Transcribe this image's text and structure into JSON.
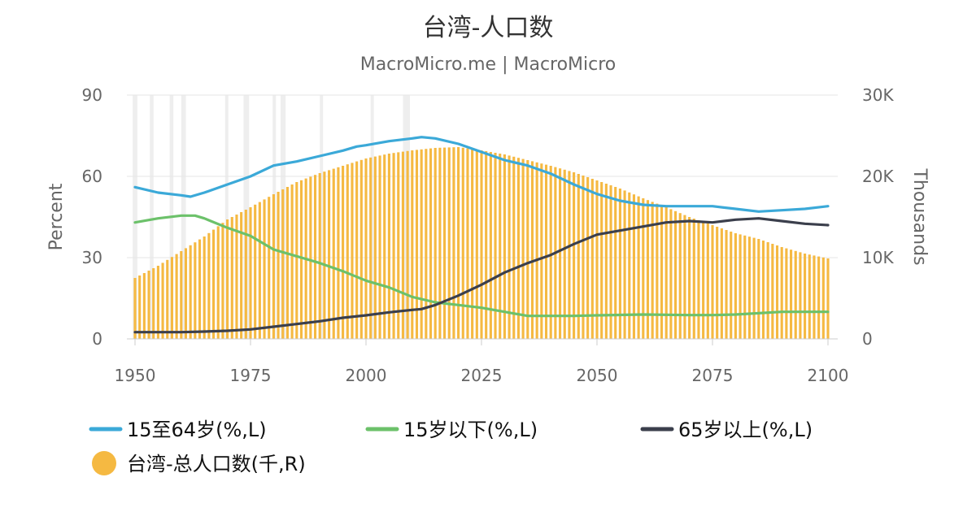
{
  "chart_data": {
    "type": "bar+line",
    "title": "台湾-人口数",
    "subtitle": "MacroMicro.me | MacroMicro",
    "left_axis": {
      "title": "Percent",
      "range": [
        0,
        90
      ],
      "ticks": [
        "0",
        "30",
        "60",
        "90"
      ]
    },
    "right_axis": {
      "title": "Thousands",
      "range": [
        0,
        30000
      ],
      "ticks": [
        "0",
        "10K",
        "20K",
        "30K"
      ]
    },
    "x_axis": {
      "range": [
        1950,
        2100
      ],
      "ticks": [
        "1950",
        "1975",
        "2000",
        "2025",
        "2050",
        "2075",
        "2100"
      ]
    },
    "grid": true,
    "legend_position": "bottom",
    "shaded_periods": [
      [
        1949.5,
        1950.5
      ],
      [
        1953.2,
        1954.0
      ],
      [
        1957.5,
        1958.3
      ],
      [
        1960.0,
        1961.0
      ],
      [
        1969.5,
        1970.2
      ],
      [
        1973.5,
        1974.7
      ],
      [
        1979.8,
        1980.5
      ],
      [
        1981.5,
        1982.6
      ],
      [
        1990.0,
        1990.7
      ],
      [
        2001.0,
        2001.7
      ],
      [
        2008.0,
        2009.5
      ]
    ],
    "series": [
      {
        "name": "15至64岁(%,L)",
        "type": "line",
        "axis": "left",
        "color": "#3ba9d8",
        "points": [
          [
            1950,
            56
          ],
          [
            1955,
            54
          ],
          [
            1960,
            53
          ],
          [
            1962,
            52.5
          ],
          [
            1965,
            54
          ],
          [
            1970,
            57
          ],
          [
            1975,
            60
          ],
          [
            1980,
            64
          ],
          [
            1985,
            65.5
          ],
          [
            1990,
            67.5
          ],
          [
            1995,
            69.5
          ],
          [
            1998,
            71
          ],
          [
            2000,
            71.5
          ],
          [
            2005,
            73
          ],
          [
            2010,
            74
          ],
          [
            2012,
            74.5
          ],
          [
            2015,
            74
          ],
          [
            2020,
            72
          ],
          [
            2025,
            69
          ],
          [
            2030,
            66
          ],
          [
            2035,
            64
          ],
          [
            2040,
            61
          ],
          [
            2045,
            57
          ],
          [
            2050,
            53.5
          ],
          [
            2055,
            51
          ],
          [
            2060,
            49.5
          ],
          [
            2065,
            49
          ],
          [
            2070,
            49
          ],
          [
            2075,
            49
          ],
          [
            2080,
            48
          ],
          [
            2085,
            47
          ],
          [
            2090,
            47.5
          ],
          [
            2095,
            48
          ],
          [
            2100,
            49
          ]
        ]
      },
      {
        "name": "15岁以下(%,L)",
        "type": "line",
        "axis": "left",
        "color": "#6cc16a",
        "points": [
          [
            1950,
            43
          ],
          [
            1955,
            44.5
          ],
          [
            1960,
            45.5
          ],
          [
            1963,
            45.5
          ],
          [
            1965,
            44.5
          ],
          [
            1970,
            41
          ],
          [
            1975,
            38
          ],
          [
            1980,
            33
          ],
          [
            1985,
            30.5
          ],
          [
            1990,
            28
          ],
          [
            1995,
            25
          ],
          [
            2000,
            21.5
          ],
          [
            2005,
            19
          ],
          [
            2010,
            15.5
          ],
          [
            2015,
            13.5
          ],
          [
            2020,
            12.5
          ],
          [
            2025,
            11.5
          ],
          [
            2030,
            10
          ],
          [
            2035,
            8.5
          ],
          [
            2040,
            8.5
          ],
          [
            2045,
            8.5
          ],
          [
            2050,
            8.7
          ],
          [
            2060,
            9
          ],
          [
            2070,
            8.8
          ],
          [
            2075,
            8.8
          ],
          [
            2080,
            9
          ],
          [
            2090,
            10
          ],
          [
            2100,
            10
          ]
        ]
      },
      {
        "name": "65岁以上(%,L)",
        "type": "line",
        "axis": "left",
        "color": "#3b3f4c",
        "points": [
          [
            1950,
            2.5
          ],
          [
            1955,
            2.5
          ],
          [
            1960,
            2.5
          ],
          [
            1965,
            2.7
          ],
          [
            1970,
            3
          ],
          [
            1975,
            3.5
          ],
          [
            1980,
            4.5
          ],
          [
            1985,
            5.5
          ],
          [
            1990,
            6.5
          ],
          [
            1995,
            7.8
          ],
          [
            2000,
            8.7
          ],
          [
            2005,
            9.8
          ],
          [
            2010,
            10.7
          ],
          [
            2012,
            11
          ],
          [
            2015,
            12.5
          ],
          [
            2020,
            16
          ],
          [
            2025,
            20
          ],
          [
            2030,
            24.5
          ],
          [
            2035,
            28
          ],
          [
            2040,
            31
          ],
          [
            2045,
            35
          ],
          [
            2050,
            38.5
          ],
          [
            2055,
            40
          ],
          [
            2060,
            41.5
          ],
          [
            2065,
            43
          ],
          [
            2070,
            43.5
          ],
          [
            2075,
            43
          ],
          [
            2080,
            44
          ],
          [
            2085,
            44.5
          ],
          [
            2090,
            43.5
          ],
          [
            2095,
            42.5
          ],
          [
            2100,
            42
          ]
        ]
      },
      {
        "name": "台湾-总人口数(千,R)",
        "type": "bar",
        "axis": "right",
        "color": "#f5b942",
        "points": [
          [
            1950,
            7500
          ],
          [
            1955,
            9000
          ],
          [
            1960,
            10800
          ],
          [
            1965,
            12600
          ],
          [
            1970,
            14700
          ],
          [
            1975,
            16200
          ],
          [
            1980,
            17800
          ],
          [
            1985,
            19300
          ],
          [
            1990,
            20400
          ],
          [
            1995,
            21300
          ],
          [
            2000,
            22200
          ],
          [
            2005,
            22800
          ],
          [
            2010,
            23200
          ],
          [
            2015,
            23500
          ],
          [
            2020,
            23600
          ],
          [
            2025,
            23200
          ],
          [
            2030,
            22700
          ],
          [
            2035,
            22000
          ],
          [
            2040,
            21300
          ],
          [
            2045,
            20500
          ],
          [
            2050,
            19500
          ],
          [
            2055,
            18500
          ],
          [
            2060,
            17300
          ],
          [
            2065,
            16200
          ],
          [
            2070,
            15000
          ],
          [
            2075,
            14000
          ],
          [
            2080,
            13000
          ],
          [
            2085,
            12300
          ],
          [
            2090,
            11300
          ],
          [
            2095,
            10500
          ],
          [
            2100,
            9900
          ]
        ]
      }
    ]
  },
  "legend": [
    {
      "label": "15至64岁(%,L)",
      "symbol": "line",
      "color": "#3ba9d8"
    },
    {
      "label": "15岁以下(%,L)",
      "symbol": "line",
      "color": "#6cc16a"
    },
    {
      "label": "65岁以上(%,L)",
      "symbol": "line",
      "color": "#3b3f4c"
    },
    {
      "label": "台湾-总人口数(千,R)",
      "symbol": "circle",
      "color": "#f5b942"
    }
  ]
}
